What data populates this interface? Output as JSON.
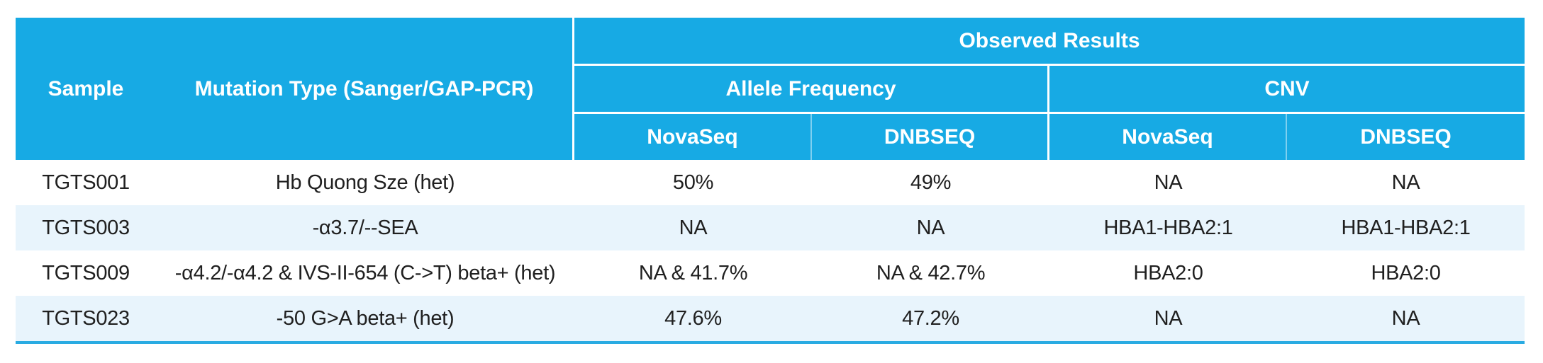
{
  "table": {
    "header": {
      "sample": "Sample",
      "mutation_type": "Mutation Type (Sanger/GAP-PCR)",
      "observed_results": "Observed Results",
      "allele_frequency": "Allele Frequency",
      "cnv": "CNV",
      "platforms": [
        "NovaSeq",
        "DNBSEQ",
        "NovaSeq",
        "DNBSEQ"
      ]
    },
    "rows": [
      {
        "sample": "TGTS001",
        "mutation": "Hb Quong Sze (het)",
        "af_novaseq": "50%",
        "af_dnbseq": "49%",
        "cnv_novaseq": "NA",
        "cnv_dnbseq": "NA"
      },
      {
        "sample": "TGTS003",
        "mutation": "-α3.7/--SEA",
        "af_novaseq": "NA",
        "af_dnbseq": "NA",
        "cnv_novaseq": "HBA1-HBA2:1",
        "cnv_dnbseq": "HBA1-HBA2:1"
      },
      {
        "sample": "TGTS009",
        "mutation": "-α4.2/-α4.2 & IVS-II-654 (C->T) beta+ (het)",
        "af_novaseq": "NA & 41.7%",
        "af_dnbseq": "NA & 42.7%",
        "cnv_novaseq": "HBA2:0",
        "cnv_dnbseq": "HBA2:0"
      },
      {
        "sample": "TGTS023",
        "mutation": "-50 G>A beta+ (het)",
        "af_novaseq": "47.6%",
        "af_dnbseq": "47.2%",
        "cnv_novaseq": "NA",
        "cnv_dnbseq": "NA"
      }
    ],
    "colors": {
      "header_bg": "#17aae4",
      "alt_row_bg": "#e8f4fc",
      "bottom_border": "#29abe2",
      "header_text": "#ffffff",
      "body_text": "#202020"
    }
  }
}
